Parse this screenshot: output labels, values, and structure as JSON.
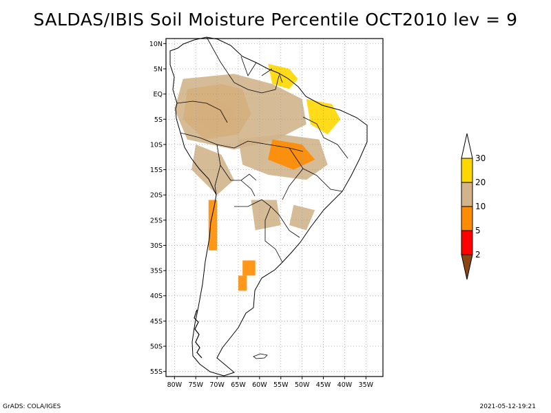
{
  "title": "SALDAS/IBIS Soil Moisture Percentile OCT2010 lev = 9",
  "footer": {
    "left": "GrADS: COLA/IGES",
    "right": "2021-05-12-19:21"
  },
  "map": {
    "lon_range": [
      -82,
      -31
    ],
    "lat_range": [
      -56,
      11
    ],
    "lat_ticks": [
      {
        "value": 10,
        "label": "10N"
      },
      {
        "value": 5,
        "label": "5N"
      },
      {
        "value": 0,
        "label": "EQ"
      },
      {
        "value": -5,
        "label": "5S"
      },
      {
        "value": -10,
        "label": "10S"
      },
      {
        "value": -15,
        "label": "15S"
      },
      {
        "value": -20,
        "label": "20S"
      },
      {
        "value": -25,
        "label": "25S"
      },
      {
        "value": -30,
        "label": "30S"
      },
      {
        "value": -35,
        "label": "35S"
      },
      {
        "value": -40,
        "label": "40S"
      },
      {
        "value": -45,
        "label": "45S"
      },
      {
        "value": -50,
        "label": "50S"
      },
      {
        "value": -55,
        "label": "55S"
      }
    ],
    "lon_ticks": [
      {
        "value": -80,
        "label": "80W"
      },
      {
        "value": -75,
        "label": "75W"
      },
      {
        "value": -70,
        "label": "70W"
      },
      {
        "value": -65,
        "label": "65W"
      },
      {
        "value": -60,
        "label": "60W"
      },
      {
        "value": -55,
        "label": "55W"
      },
      {
        "value": -50,
        "label": "50W"
      },
      {
        "value": -45,
        "label": "45W"
      },
      {
        "value": -40,
        "label": "40W"
      },
      {
        "value": -35,
        "label": "35W"
      }
    ]
  },
  "colorbar": {
    "levels": [
      "2",
      "5",
      "10",
      "20",
      "30"
    ],
    "colors": [
      "#8b4513",
      "#ff0000",
      "#ff8c00",
      "#d2b48c",
      "#ffd700",
      "#ffffff"
    ]
  },
  "regions": [
    {
      "name": "amazon-west-low",
      "color": "#ff0000",
      "points": [
        [
          -75,
          -2
        ],
        [
          -70,
          -1
        ],
        [
          -66,
          -3
        ],
        [
          -67,
          -7
        ],
        [
          -71,
          -8
        ],
        [
          -75,
          -5
        ]
      ]
    },
    {
      "name": "amazon-west-mid",
      "color": "#ff8c00",
      "points": [
        [
          -77,
          1
        ],
        [
          -69,
          2
        ],
        [
          -64,
          1
        ],
        [
          -62,
          -4
        ],
        [
          -65,
          -8
        ],
        [
          -73,
          -9
        ],
        [
          -78,
          -5
        ]
      ]
    },
    {
      "name": "amazon-central-tan",
      "color": "#d2b48c",
      "points": [
        [
          -78,
          3
        ],
        [
          -66,
          4
        ],
        [
          -57,
          2
        ],
        [
          -50,
          -1
        ],
        [
          -49,
          -6
        ],
        [
          -56,
          -9
        ],
        [
          -66,
          -11
        ],
        [
          -77,
          -9
        ],
        [
          -80,
          -3
        ]
      ]
    },
    {
      "name": "guiana-yellow",
      "color": "#ffd700",
      "points": [
        [
          -58,
          6
        ],
        [
          -53,
          5
        ],
        [
          -51,
          3
        ],
        [
          -53,
          1
        ],
        [
          -57,
          2
        ]
      ]
    },
    {
      "name": "northeast-yellow",
      "color": "#ffd700",
      "points": [
        [
          -49,
          -1
        ],
        [
          -43,
          -2
        ],
        [
          -41,
          -5
        ],
        [
          -44,
          -8
        ],
        [
          -48,
          -6
        ]
      ]
    },
    {
      "name": "central-tan",
      "color": "#d2b48c",
      "points": [
        [
          -65,
          -9
        ],
        [
          -55,
          -8
        ],
        [
          -46,
          -9
        ],
        [
          -44,
          -14
        ],
        [
          -49,
          -17
        ],
        [
          -58,
          -16
        ],
        [
          -64,
          -14
        ]
      ]
    },
    {
      "name": "central-orange",
      "color": "#ff8c00",
      "points": [
        [
          -57,
          -9
        ],
        [
          -50,
          -10
        ],
        [
          -47,
          -13
        ],
        [
          -52,
          -15
        ],
        [
          -58,
          -13
        ]
      ]
    },
    {
      "name": "andes-tan",
      "color": "#d2b48c",
      "points": [
        [
          -75,
          -10
        ],
        [
          -69,
          -12
        ],
        [
          -66,
          -17
        ],
        [
          -70,
          -20
        ],
        [
          -76,
          -15
        ]
      ]
    },
    {
      "name": "chile-orange",
      "color": "#ff8c00",
      "points": [
        [
          -72,
          -21
        ],
        [
          -70,
          -21
        ],
        [
          -70,
          -31
        ],
        [
          -72,
          -31
        ]
      ]
    },
    {
      "name": "south-brazil-tan",
      "color": "#d2b48c",
      "points": [
        [
          -52,
          -22
        ],
        [
          -47,
          -23
        ],
        [
          -49,
          -27
        ],
        [
          -53,
          -26
        ]
      ]
    },
    {
      "name": "pampa-orange",
      "color": "#ff8c00",
      "points": [
        [
          -64,
          -33
        ],
        [
          -61,
          -33
        ],
        [
          -61,
          -36
        ],
        [
          -64,
          -36
        ]
      ]
    },
    {
      "name": "pampa-south-orange",
      "color": "#ff8c00",
      "points": [
        [
          -65,
          -36
        ],
        [
          -63,
          -36
        ],
        [
          -63,
          -39
        ],
        [
          -65,
          -39
        ]
      ]
    },
    {
      "name": "paraguay-tan",
      "color": "#d2b48c",
      "points": [
        [
          -62,
          -21
        ],
        [
          -56,
          -21
        ],
        [
          -55,
          -26
        ],
        [
          -61,
          -27
        ]
      ]
    }
  ]
}
